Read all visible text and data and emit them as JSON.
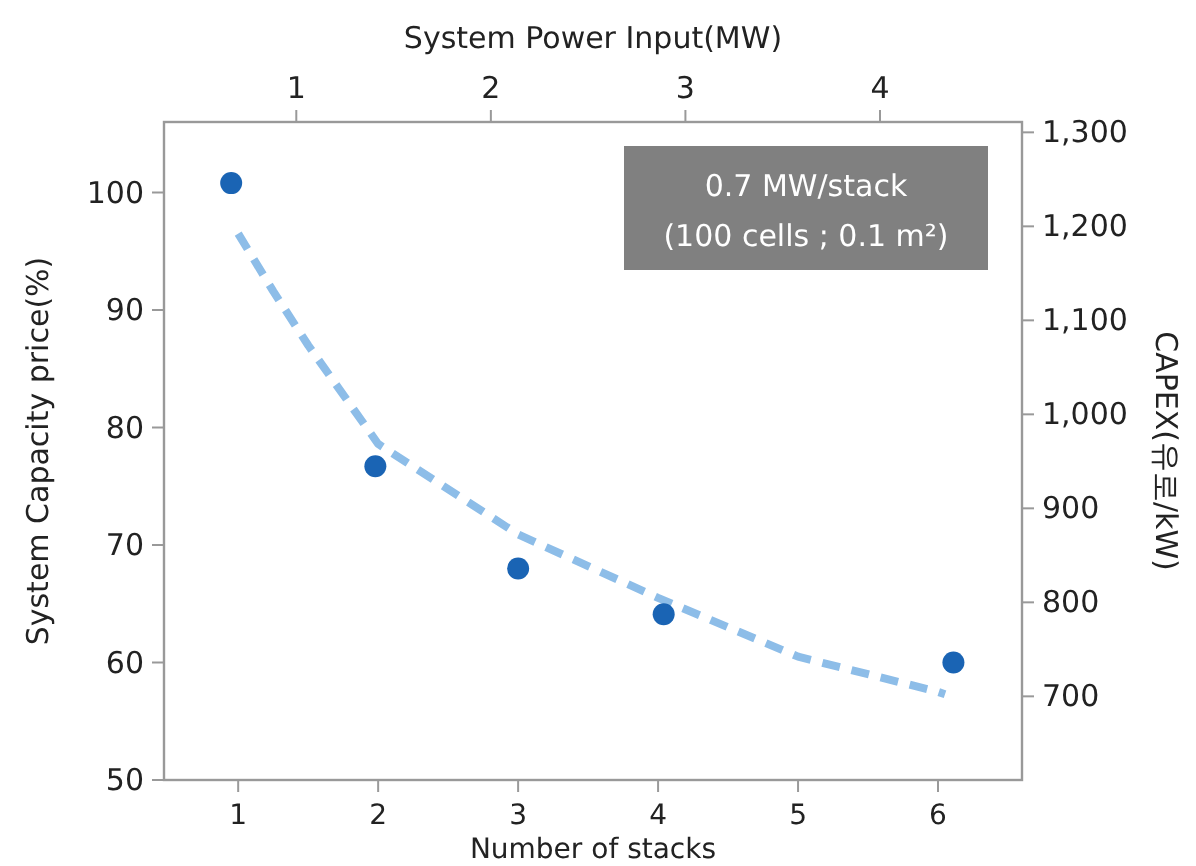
{
  "chart_data": {
    "type": "scatter",
    "xlabel": "Number of stacks",
    "ylabel": "System Capacity price(%)",
    "y2label": "CAPEX(유로/kW)",
    "x2label": "System Power Input(MW)",
    "annotations": [
      "0.7 MW/stack",
      "(100 cells ; 0.1 m²)"
    ],
    "xlim": [
      0.47,
      6.6
    ],
    "xticks": [
      1,
      2,
      3,
      4,
      5,
      6
    ],
    "ylim": [
      50,
      106
    ],
    "yticks": [
      50,
      60,
      70,
      80,
      90,
      100
    ],
    "y2lim": [
      611,
      1311
    ],
    "y2ticks": [
      {
        "value": 700,
        "label": "700"
      },
      {
        "value": 800,
        "label": "800"
      },
      {
        "value": 900,
        "label": "900"
      },
      {
        "value": 1000,
        "label": "1,000"
      },
      {
        "value": 1100,
        "label": "1,100"
      },
      {
        "value": 1200,
        "label": "1,200"
      },
      {
        "value": 1300,
        "label": "1,300"
      }
    ],
    "x2lim": [
      0.32,
      4.73
    ],
    "x2ticks": [
      1,
      2,
      3,
      4
    ],
    "grid": false,
    "series": [
      {
        "type": "line",
        "color": "#8dbde8",
        "line_style": "dashed",
        "marker": "none",
        "x": [
          1,
          1.25,
          1.5,
          2,
          3,
          4,
          5,
          6,
          6.05
        ],
        "values": [
          96.5,
          91.6,
          87,
          78.6,
          70.9,
          65.5,
          60.5,
          57.5,
          57.3
        ]
      },
      {
        "type": "scatter",
        "color": "#1a64b4",
        "marker": "circle",
        "x": [
          0.95,
          1.98,
          3.0,
          4.04,
          6.11
        ],
        "values": [
          100.8,
          76.7,
          68.0,
          64.1,
          60.0
        ]
      }
    ]
  }
}
